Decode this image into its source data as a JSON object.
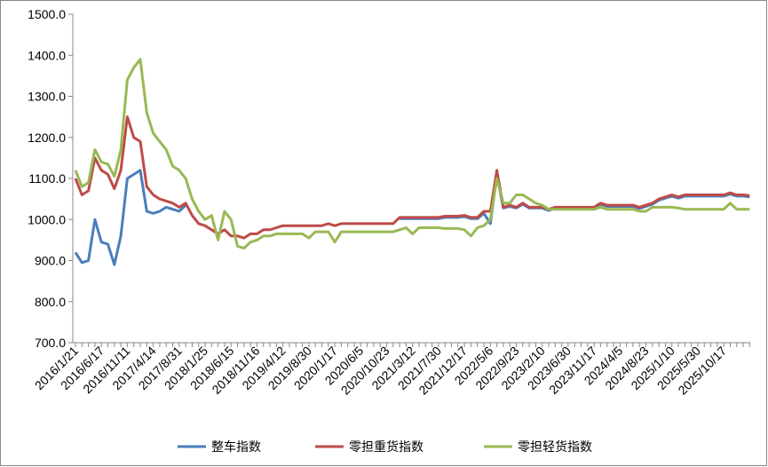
{
  "chart_data": {
    "type": "line",
    "categories": [
      "2016/1/21",
      null,
      null,
      null,
      "2016/6/17",
      null,
      null,
      null,
      "2016/11/11",
      null,
      null,
      null,
      "2017/4/14",
      null,
      null,
      null,
      "2017/8/31",
      null,
      null,
      null,
      "2018/1/25",
      null,
      null,
      null,
      "2018/6/15",
      null,
      null,
      null,
      "2018/11/16",
      null,
      null,
      null,
      "2019/4/12",
      null,
      null,
      null,
      "2019/8/30",
      null,
      null,
      null,
      "2020/1/17",
      null,
      null,
      null,
      "2020/6/5",
      null,
      null,
      null,
      "2020/10/23",
      null,
      null,
      null,
      "2021/3/12",
      null,
      null,
      null,
      "2021/7/30",
      null,
      null,
      null,
      "2021/12/17",
      null,
      null,
      null,
      "2022/5/6",
      null,
      null,
      null,
      "2022/9/23",
      null,
      null,
      null,
      "2023/2/10",
      null,
      null,
      null,
      "2023/6/30",
      null,
      null,
      null,
      "2023/11/17",
      null,
      null,
      null,
      "2024/4/5",
      null,
      null,
      null,
      "2024/8/23",
      null,
      null,
      null,
      "2025/1/10",
      null,
      null,
      null,
      "2025/5/30",
      null,
      null,
      null,
      "2025/10/17",
      null,
      null,
      null,
      null
    ],
    "series": [
      {
        "name": "整车指数",
        "color": "#4a7ebb",
        "values": [
          920,
          895,
          900,
          1000,
          945,
          940,
          890,
          960,
          1100,
          1110,
          1120,
          1020,
          1015,
          1020,
          1030,
          1025,
          1020,
          1035,
          null,
          null,
          null,
          null,
          null,
          null,
          null,
          null,
          null,
          null,
          null,
          null,
          null,
          null,
          null,
          null,
          null,
          null,
          null,
          null,
          null,
          null,
          null,
          null,
          null,
          null,
          null,
          null,
          null,
          null,
          null,
          null,
          1002,
          1002,
          1002,
          1002,
          1002,
          1002,
          1002,
          1005,
          1005,
          1005,
          1007,
          1002,
          1002,
          1015,
          990,
          1110,
          1028,
          1032,
          1028,
          1037,
          1028,
          1028,
          1028,
          1022,
          1027,
          1027,
          1027,
          1027,
          1027,
          1027,
          1027,
          1037,
          1032,
          1032,
          1032,
          1032,
          1032,
          1027,
          1032,
          1037,
          1047,
          1052,
          1057,
          1052,
          1057,
          1057,
          1057,
          1057,
          1057,
          1057,
          1057,
          1062,
          1057,
          1057,
          1055
        ]
      },
      {
        "name": "零担重货指数",
        "color": "#be4b48",
        "values": [
          1100,
          1060,
          1070,
          1150,
          1120,
          1110,
          1075,
          1120,
          1250,
          1200,
          1190,
          1080,
          1060,
          1050,
          1045,
          1040,
          1030,
          1040,
          1010,
          990,
          985,
          975,
          965,
          975,
          960,
          960,
          955,
          965,
          965,
          975,
          975,
          980,
          985,
          985,
          985,
          985,
          985,
          985,
          985,
          990,
          985,
          990,
          990,
          990,
          990,
          990,
          990,
          990,
          990,
          990,
          1005,
          1005,
          1005,
          1005,
          1005,
          1005,
          1005,
          1008,
          1008,
          1008,
          1010,
          1005,
          1005,
          1020,
          1020,
          1120,
          1030,
          1035,
          1030,
          1040,
          1030,
          1030,
          1030,
          1025,
          1030,
          1030,
          1030,
          1030,
          1030,
          1030,
          1030,
          1040,
          1035,
          1035,
          1035,
          1035,
          1035,
          1030,
          1035,
          1040,
          1050,
          1055,
          1060,
          1055,
          1060,
          1060,
          1060,
          1060,
          1060,
          1060,
          1060,
          1065,
          1060,
          1060,
          1058
        ]
      },
      {
        "name": "零担轻货指数",
        "color": "#98b954",
        "values": [
          1120,
          1080,
          1090,
          1170,
          1140,
          1135,
          1105,
          1170,
          1340,
          1370,
          1390,
          1260,
          1210,
          1190,
          1170,
          1130,
          1120,
          1100,
          1050,
          1020,
          1000,
          1010,
          950,
          1020,
          1000,
          935,
          930,
          945,
          950,
          960,
          960,
          965,
          965,
          965,
          965,
          965,
          955,
          970,
          970,
          970,
          945,
          970,
          970,
          970,
          970,
          970,
          970,
          970,
          970,
          970,
          975,
          980,
          965,
          980,
          980,
          980,
          980,
          978,
          978,
          978,
          975,
          960,
          980,
          985,
          1000,
          1100,
          1040,
          1040,
          1060,
          1060,
          1050,
          1040,
          1035,
          1025,
          1025,
          1025,
          1025,
          1025,
          1025,
          1025,
          1025,
          1030,
          1025,
          1025,
          1025,
          1025,
          1025,
          1020,
          1020,
          1030,
          1030,
          1030,
          1030,
          1028,
          1025,
          1025,
          1025,
          1025,
          1025,
          1025,
          1025,
          1040,
          1025,
          1025,
          1025
        ]
      }
    ],
    "ylim": [
      700,
      1500
    ],
    "yticks": [
      {
        "value": 700,
        "label": "700.0"
      },
      {
        "value": 800,
        "label": "800.0"
      },
      {
        "value": 900,
        "label": "900.0"
      },
      {
        "value": 1000,
        "label": "1000.0"
      },
      {
        "value": 1100,
        "label": "1100.0"
      },
      {
        "value": 1200,
        "label": "1200.0"
      },
      {
        "value": 1300,
        "label": "1300.0"
      },
      {
        "value": 1400,
        "label": "1400.0"
      },
      {
        "value": 1500,
        "label": "1500.0"
      }
    ],
    "legend": "bottom"
  }
}
